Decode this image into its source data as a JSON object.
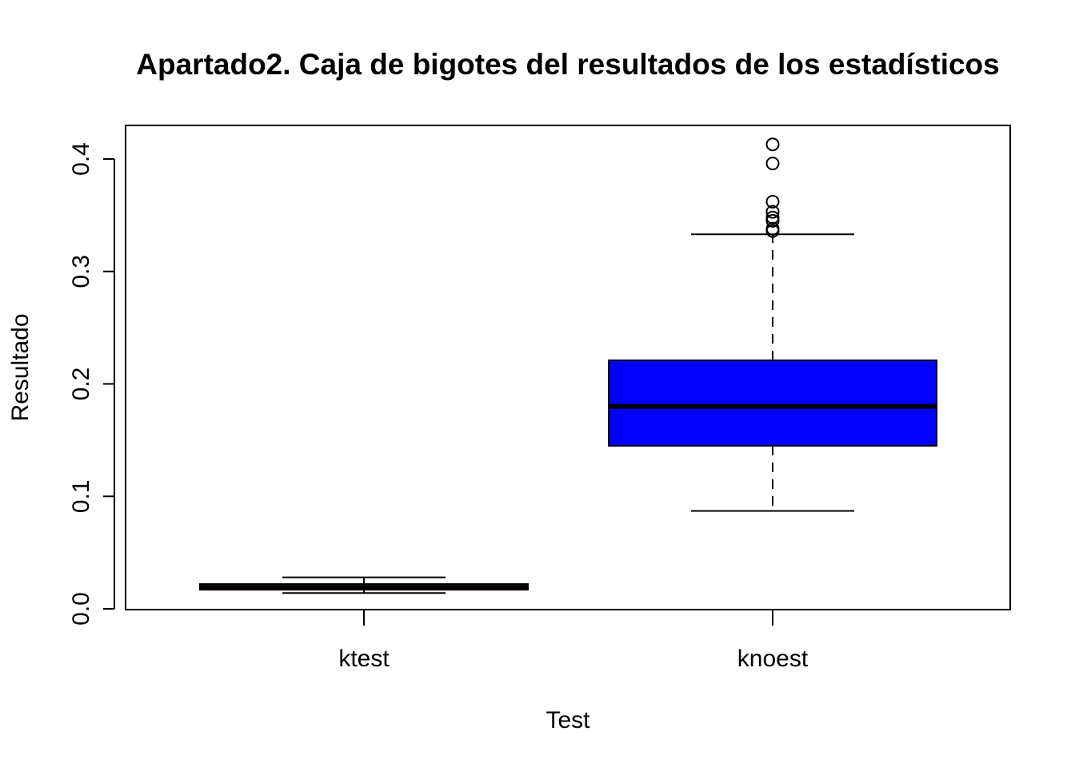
{
  "chart_data": {
    "type": "boxplot",
    "title": "Apartado2. Caja de bigotes del resultados de los estadísticos",
    "xlabel": "Test",
    "ylabel": "Resultado",
    "ylim": [
      0.0,
      0.43
    ],
    "yticks": [
      "0.0",
      "0.1",
      "0.2",
      "0.3",
      "0.4"
    ],
    "ytick_values": [
      0.0,
      0.1,
      0.2,
      0.3,
      0.4
    ],
    "grid": false,
    "legend": "none",
    "categories": [
      "ktest",
      "knoest"
    ],
    "boxes": [
      {
        "category": "ktest",
        "whisker_low": 0.014,
        "q1": 0.017,
        "median": 0.019,
        "q3": 0.022,
        "whisker_high": 0.028,
        "outliers": [],
        "fill": "#228B22"
      },
      {
        "category": "knoest",
        "whisker_low": 0.087,
        "q1": 0.145,
        "median": 0.18,
        "q3": 0.221,
        "whisker_high": 0.333,
        "outliers": [
          0.336,
          0.338,
          0.345,
          0.348,
          0.353,
          0.362,
          0.396,
          0.413
        ],
        "fill": "#0000FF"
      }
    ]
  }
}
